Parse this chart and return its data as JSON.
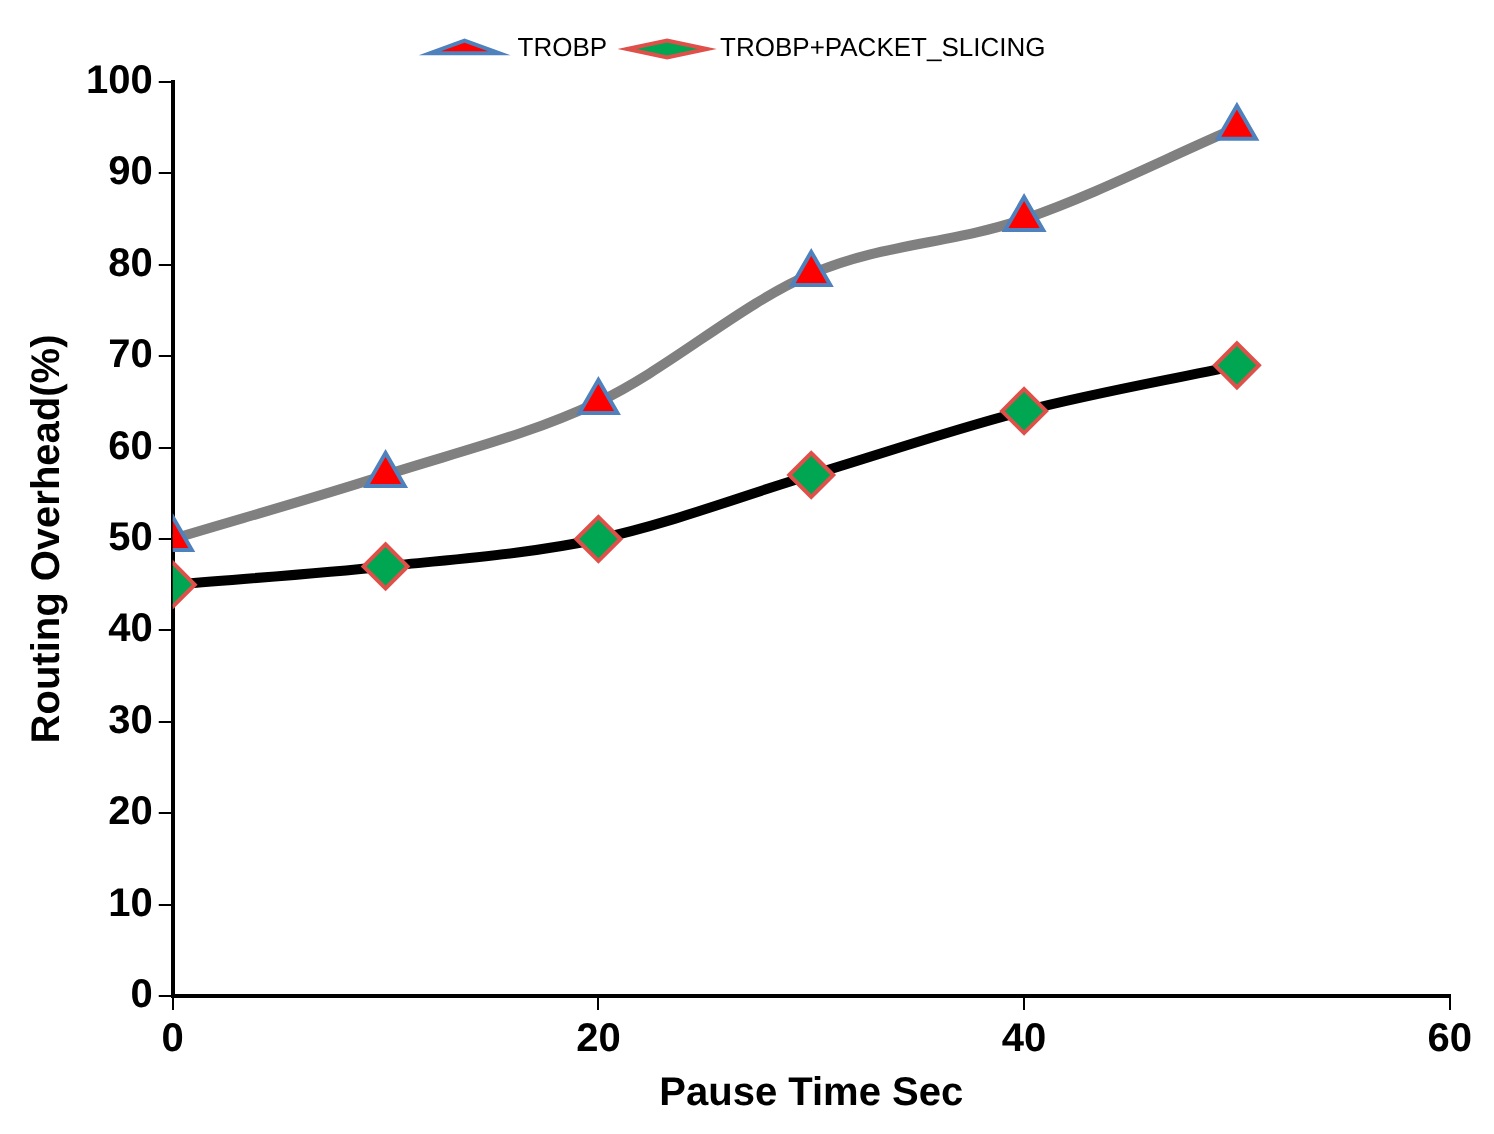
{
  "chart_data": {
    "type": "line",
    "xlabel": "Pause Time Sec",
    "ylabel": "Routing Overhead(%)",
    "x": [
      0,
      10,
      20,
      30,
      40,
      50
    ],
    "series": [
      {
        "name": "TROBP",
        "color": "#808080",
        "marker": "triangle",
        "values": [
          50,
          57,
          65,
          79,
          85,
          95
        ]
      },
      {
        "name": "TROBP+PACKET_SLICING",
        "color": "#000000",
        "marker": "diamond",
        "values": [
          45,
          47,
          50,
          57,
          64,
          69
        ]
      }
    ],
    "xlim": [
      0,
      60
    ],
    "xticks": [
      0,
      20,
      40,
      60
    ],
    "ylim": [
      0,
      100
    ],
    "yticks": [
      0,
      10,
      20,
      30,
      40,
      50,
      60,
      70,
      80,
      90,
      100
    ],
    "grid": false,
    "legend": "top"
  }
}
